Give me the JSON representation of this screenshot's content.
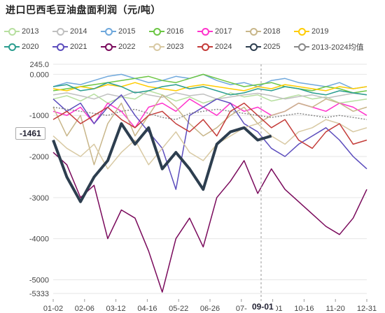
{
  "title": "进口巴西毛豆油盘面利润（元/吨）",
  "legend_rows": [
    [
      "2013",
      "2014",
      "2015",
      "2016",
      "2017",
      "2018",
      "2019"
    ],
    [
      "2020",
      "2021",
      "2022",
      "2023",
      "2024",
      "2025",
      "2013-2024均值"
    ]
  ],
  "pointer_value": "-1461",
  "cursor_x_label": "09-01",
  "chart_data": {
    "type": "line",
    "title": "进口巴西毛豆油盘面利润（元/吨）",
    "xlabel": "",
    "ylabel": "",
    "ylim": [
      -5333,
      245
    ],
    "y_ticks": [
      "245.0",
      "0.000",
      "-1000",
      "-2000",
      "-3000",
      "-4000",
      "-5000",
      "-5333"
    ],
    "y_tick_values": [
      245,
      0,
      -1000,
      -2000,
      -3000,
      -4000,
      -5000,
      -5333
    ],
    "x_ticks": [
      "01-02",
      "02-06",
      "03-12",
      "04-16",
      "05-22",
      "06-26",
      "07-",
      "09-01",
      "10-16",
      "11-20",
      "12-31"
    ],
    "grid": true,
    "legend_position": "top",
    "series": [
      {
        "name": "2013",
        "color": "#b7dfa0",
        "values": [
          -600,
          -520,
          -650,
          -480,
          -700,
          -550,
          -600,
          -400,
          -500,
          -650,
          -550,
          -700,
          -600,
          -450,
          -550,
          -500,
          -650,
          -580,
          -500,
          -600,
          -550,
          -700,
          -650,
          -600
        ]
      },
      {
        "name": "2014",
        "color": "#c0c0c0",
        "values": [
          -500,
          -450,
          -520,
          -600,
          -480,
          -550,
          -420,
          -500,
          -560,
          -450,
          -520,
          -480,
          -600,
          -550,
          -500,
          -460,
          -520,
          -600,
          -540,
          -500,
          -580,
          -520,
          -460,
          -500
        ]
      },
      {
        "name": "2015",
        "color": "#6fa8dc",
        "values": [
          -300,
          -200,
          -250,
          -150,
          -50,
          0,
          -100,
          -200,
          -150,
          -50,
          -100,
          0,
          -150,
          -250,
          -200,
          -300,
          -150,
          -100,
          -200,
          -250,
          -300,
          -200,
          -350,
          -300
        ]
      },
      {
        "name": "2016",
        "color": "#6cc644",
        "values": [
          -400,
          -350,
          -300,
          -250,
          -200,
          -150,
          -100,
          -50,
          -150,
          -200,
          -100,
          0,
          -100,
          -200,
          -300,
          -250,
          -200,
          -300,
          -350,
          -400,
          -300,
          -350,
          -450,
          -400
        ]
      },
      {
        "name": "2017",
        "color": "#ff33cc",
        "values": [
          -900,
          -1000,
          -800,
          -1200,
          -700,
          -900,
          -1300,
          -800,
          -700,
          -900,
          -600,
          -800,
          -1000,
          -700,
          -900,
          -800,
          -1000,
          -900,
          -700,
          -800,
          -900,
          -700,
          -800,
          -1000
        ]
      },
      {
        "name": "2018",
        "color": "#c8b68a",
        "values": [
          -800,
          -1500,
          -1000,
          -2200,
          -1200,
          -700,
          -1500,
          -1000,
          -500,
          -800,
          -1200,
          -1500,
          -1300,
          -1000,
          -800,
          -1200,
          -1000,
          -900,
          -700,
          -800,
          -600,
          -700,
          -900,
          -800
        ]
      },
      {
        "name": "2019",
        "color": "#ffcc00",
        "values": [
          -350,
          -400,
          -300,
          -350,
          -250,
          -300,
          -200,
          -300,
          -350,
          -400,
          -300,
          -250,
          -300,
          -350,
          -400,
          -300,
          -350,
          -250,
          -300,
          -350,
          -400,
          -300,
          -350,
          -300
        ]
      },
      {
        "name": "2020",
        "color": "#2a9d8f",
        "values": [
          -300,
          -250,
          -400,
          -350,
          -200,
          -300,
          -450,
          -400,
          -300,
          -250,
          -350,
          -300,
          -400,
          -500,
          -450,
          -350,
          -400,
          -300,
          -350,
          -450,
          -500,
          -400,
          -450,
          -500
        ]
      },
      {
        "name": "2021",
        "color": "#5c4dbd",
        "values": [
          -600,
          -900,
          -700,
          -1200,
          -800,
          -500,
          -1000,
          -1400,
          -1800,
          -2800,
          -1000,
          -800,
          -600,
          -700,
          -1200,
          -1400,
          -1800,
          -2000,
          -1700,
          -1500,
          -1300,
          -1600,
          -2000,
          -2300
        ]
      },
      {
        "name": "2022",
        "color": "#7a0a5c",
        "values": [
          -1900,
          -2200,
          -3000,
          -2700,
          -4000,
          -3300,
          -3500,
          -4300,
          -5300,
          -4000,
          -3500,
          -4200,
          -3000,
          -2600,
          -2100,
          -2900,
          -2300,
          -2800,
          -3100,
          -3400,
          -3700,
          -3900,
          -3500,
          -2800
        ]
      },
      {
        "name": "2023",
        "color": "#d8c9a3",
        "values": [
          -1500,
          -1800,
          -2000,
          -1700,
          -2300,
          -1900,
          -1600,
          -2200,
          -1800,
          -1400,
          -1900,
          -2100,
          -1700,
          -1500,
          -1300,
          -1200,
          -1500,
          -1700,
          -1400,
          -1300,
          -1100,
          -1200,
          -1400,
          -1300
        ]
      },
      {
        "name": "2024",
        "color": "#c43c39",
        "values": [
          -1100,
          -900,
          -1200,
          -1000,
          -800,
          -1100,
          -1300,
          -1000,
          -900,
          -1200,
          -1400,
          -1100,
          -1500,
          -900,
          -700,
          -1000,
          -1300,
          -1100,
          -1600,
          -1800,
          -1400,
          -1200,
          -1700,
          -1600
        ]
      },
      {
        "name": "2025",
        "color": "#2d3e4f",
        "values": [
          -1600,
          -2500,
          -3100,
          -2500,
          -2100,
          -1200,
          -1700,
          -1300,
          -2300,
          -1900,
          -2300,
          -2800,
          -1700,
          -1400,
          -1300,
          -1600,
          -1500
        ]
      },
      {
        "name": "2013-2024均值",
        "color": "#888888",
        "values": [
          -800,
          -850,
          -900,
          -950,
          -1000,
          -900,
          -850,
          -950,
          -1050,
          -1100,
          -950,
          -900,
          -850,
          -900,
          -950,
          -1000,
          -1050,
          -1000,
          -950,
          -1000,
          -1050,
          -1000,
          -1050,
          -1100
        ]
      }
    ]
  }
}
